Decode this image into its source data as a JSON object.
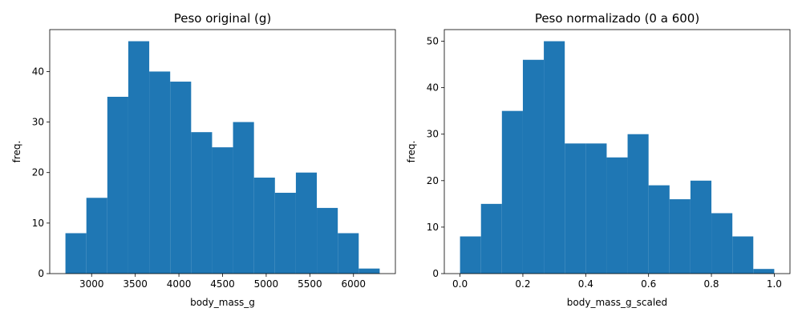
{
  "chart_data": [
    {
      "type": "histogram",
      "title": "Peso original (g)",
      "xlabel": "body_mass_g",
      "ylabel": "freq.",
      "bins": [
        {
          "start": 2700,
          "end": 2940,
          "count": 8
        },
        {
          "start": 2940,
          "end": 3180,
          "count": 15
        },
        {
          "start": 3180,
          "end": 3420,
          "count": 35
        },
        {
          "start": 3420,
          "end": 3660,
          "count": 46
        },
        {
          "start": 3660,
          "end": 3900,
          "count": 40
        },
        {
          "start": 3900,
          "end": 4140,
          "count": 38
        },
        {
          "start": 4140,
          "end": 4380,
          "count": 28
        },
        {
          "start": 4380,
          "end": 4620,
          "count": 25
        },
        {
          "start": 4620,
          "end": 4860,
          "count": 30
        },
        {
          "start": 4860,
          "end": 5100,
          "count": 19
        },
        {
          "start": 5100,
          "end": 5340,
          "count": 16
        },
        {
          "start": 5340,
          "end": 5580,
          "count": 20
        },
        {
          "start": 5580,
          "end": 5820,
          "count": 13
        },
        {
          "start": 5820,
          "end": 6060,
          "count": 8
        },
        {
          "start": 6060,
          "end": 6300,
          "count": 1
        }
      ],
      "xlim": [
        2520,
        6480
      ],
      "ylim": [
        0,
        48.3
      ],
      "xticks": [
        3000,
        3500,
        4000,
        4500,
        5000,
        5500,
        6000
      ],
      "yticks": [
        0,
        10,
        20,
        30,
        40
      ],
      "bar_color": "#1f77b4",
      "grid": false
    },
    {
      "type": "histogram",
      "title": "Peso normalizado (0 a 600)",
      "xlabel": "body_mass_g_scaled",
      "ylabel": "freq.",
      "bins": [
        {
          "start": 0.0,
          "end": 0.0667,
          "count": 8
        },
        {
          "start": 0.0667,
          "end": 0.1333,
          "count": 15
        },
        {
          "start": 0.1333,
          "end": 0.2,
          "count": 35
        },
        {
          "start": 0.2,
          "end": 0.2667,
          "count": 46
        },
        {
          "start": 0.2667,
          "end": 0.3333,
          "count": 50
        },
        {
          "start": 0.3333,
          "end": 0.4,
          "count": 28
        },
        {
          "start": 0.4,
          "end": 0.4667,
          "count": 28
        },
        {
          "start": 0.4667,
          "end": 0.5333,
          "count": 25
        },
        {
          "start": 0.5333,
          "end": 0.6,
          "count": 30
        },
        {
          "start": 0.6,
          "end": 0.6667,
          "count": 19
        },
        {
          "start": 0.6667,
          "end": 0.7333,
          "count": 16
        },
        {
          "start": 0.7333,
          "end": 0.8,
          "count": 20
        },
        {
          "start": 0.8,
          "end": 0.8667,
          "count": 13
        },
        {
          "start": 0.8667,
          "end": 0.9333,
          "count": 8
        },
        {
          "start": 0.9333,
          "end": 1.0,
          "count": 1
        }
      ],
      "xlim": [
        -0.05,
        1.05
      ],
      "ylim": [
        0,
        52.5
      ],
      "xticks": [
        0.0,
        0.2,
        0.4,
        0.6,
        0.8,
        1.0
      ],
      "xtick_labels": [
        "0.0",
        "0.2",
        "0.4",
        "0.6",
        "0.8",
        "1.0"
      ],
      "yticks": [
        0,
        10,
        20,
        30,
        40,
        50
      ],
      "bar_color": "#1f77b4",
      "grid": false
    }
  ]
}
